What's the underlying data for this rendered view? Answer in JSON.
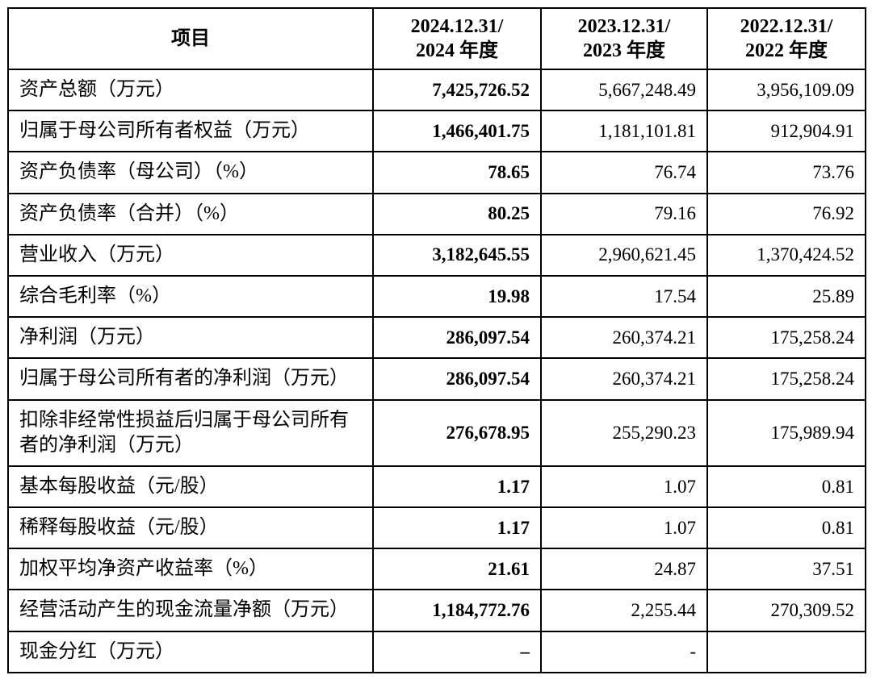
{
  "table": {
    "headers": [
      "项目",
      "2024.12.31/\n2024 年度",
      "2023.12.31/\n2023 年度",
      "2022.12.31/\n2022 年度"
    ],
    "rows": [
      {
        "label": "资产总额（万元）",
        "values": [
          "7,425,726.52",
          "5,667,248.49",
          "3,956,109.09"
        ]
      },
      {
        "label": "归属于母公司所有者权益（万元）",
        "values": [
          "1,466,401.75",
          "1,181,101.81",
          "912,904.91"
        ]
      },
      {
        "label": "资产负债率（母公司）（%）",
        "values": [
          "78.65",
          "76.74",
          "73.76"
        ]
      },
      {
        "label": "资产负债率（合并）（%）",
        "values": [
          "80.25",
          "79.16",
          "76.92"
        ]
      },
      {
        "label": "营业收入（万元）",
        "values": [
          "3,182,645.55",
          "2,960,621.45",
          "1,370,424.52"
        ]
      },
      {
        "label": "综合毛利率（%）",
        "values": [
          "19.98",
          "17.54",
          "25.89"
        ]
      },
      {
        "label": "净利润（万元）",
        "values": [
          "286,097.54",
          "260,374.21",
          "175,258.24"
        ]
      },
      {
        "label": "归属于母公司所有者的净利润（万元）",
        "values": [
          "286,097.54",
          "260,374.21",
          "175,258.24"
        ]
      },
      {
        "label": "扣除非经常性损益后归属于母公司所有者的净利润（万元）",
        "values": [
          "276,678.95",
          "255,290.23",
          "175,989.94"
        ]
      },
      {
        "label": "基本每股收益（元/股）",
        "values": [
          "1.17",
          "1.07",
          "0.81"
        ]
      },
      {
        "label": "稀释每股收益（元/股）",
        "values": [
          "1.17",
          "1.07",
          "0.81"
        ]
      },
      {
        "label": "加权平均净资产收益率（%）",
        "values": [
          "21.61",
          "24.87",
          "37.51"
        ]
      },
      {
        "label": "经营活动产生的现金流量净额（万元）",
        "values": [
          "1,184,772.76",
          "2,255.44",
          "270,309.52"
        ]
      },
      {
        "label": "现金分红（万元）",
        "values": [
          "–",
          "-",
          ""
        ]
      }
    ]
  }
}
